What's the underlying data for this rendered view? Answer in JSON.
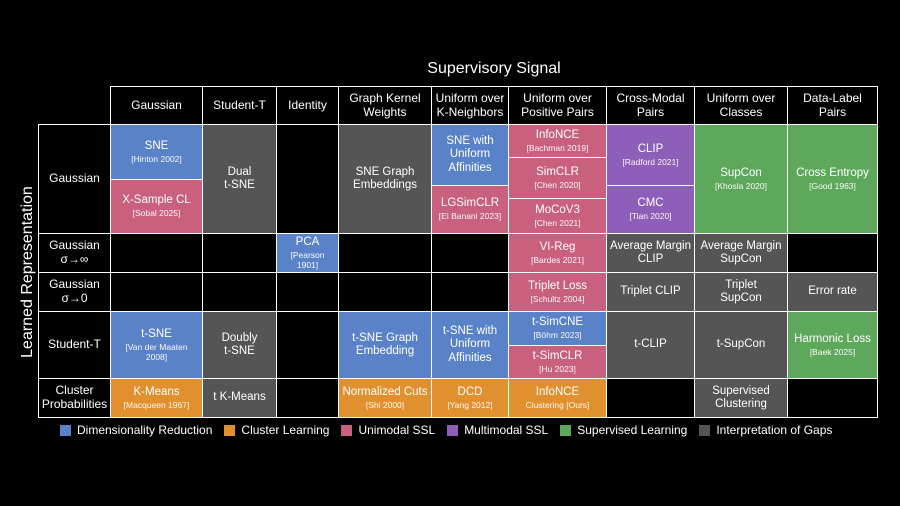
{
  "title": "Supervisory Signal",
  "y_label": "Learned Representation",
  "col_headers": [
    {
      "line1": "Gaussian",
      "line2": ""
    },
    {
      "line1": "Student-T",
      "line2": ""
    },
    {
      "line1": "Identity",
      "line2": ""
    },
    {
      "line1": "Graph Kernel",
      "line2": "Weights"
    },
    {
      "line1": "Uniform over",
      "line2": "K-Neighbors"
    },
    {
      "line1": "Uniform over",
      "line2": "Positive Pairs"
    },
    {
      "line1": "Cross-Modal",
      "line2": "Pairs"
    },
    {
      "line1": "Uniform over",
      "line2": "Classes"
    },
    {
      "line1": "Data-Label",
      "line2": "Pairs"
    }
  ],
  "row_headers": [
    {
      "line1": "Gaussian",
      "line2": ""
    },
    {
      "line1": "Gaussian",
      "line2": "σ→∞"
    },
    {
      "line1": "Gaussian",
      "line2": "σ→0"
    },
    {
      "line1": "Student-T",
      "line2": ""
    },
    {
      "line1": "Cluster",
      "line2": "Probabilities"
    }
  ],
  "colors": {
    "dimensionality_reduction": "#5a82c8",
    "cluster_learning": "#e0902e",
    "unimodal_ssl": "#c9617e",
    "multimodal_ssl": "#8e5fb8",
    "supervised_learning": "#5ea85c",
    "interpretation_of_gaps": "#555555"
  },
  "cells": {
    "r0c0a": {
      "main": "SNE",
      "cite": "[Hinton 2002]"
    },
    "r0c0b": {
      "main": "X-Sample CL",
      "cite": "[Sobal 2025]"
    },
    "r0c1": {
      "main1": "Dual",
      "main2": "t-SNE"
    },
    "r0c3": {
      "main1": "SNE Graph",
      "main2": "Embeddings"
    },
    "r0c4a": {
      "main1": "SNE with",
      "main2": "Uniform",
      "main3": "Affinities"
    },
    "r0c4b": {
      "main": "LGSimCLR",
      "cite": "[El Banani 2023]"
    },
    "r0c5a": {
      "main": "InfoNCE",
      "cite": "[Bachman 2019]"
    },
    "r0c5b": {
      "main": "SimCLR",
      "cite": "[Chen 2020]"
    },
    "r0c5c": {
      "main": "MoCoV3",
      "cite": "[Chen 2021]"
    },
    "r0c6a": {
      "main": "CLIP",
      "cite": "[Radford 2021]"
    },
    "r0c6b": {
      "main": "CMC",
      "cite": "[Tian 2020]"
    },
    "r0c7": {
      "main": "SupCon",
      "cite": "[Khosla 2020]"
    },
    "r0c8": {
      "main": "Cross Entropy",
      "cite": "[Good 1963]"
    },
    "r1c2": {
      "main": "PCA",
      "cite": "[Pearson 1901]"
    },
    "r1c5": {
      "main": "VI-Reg",
      "cite": "[Bardes 2021]"
    },
    "r1c6": {
      "main1": "Average Margin",
      "main2": "CLIP"
    },
    "r1c7": {
      "main1": "Average Margin",
      "main2": "SupCon"
    },
    "r2c5": {
      "main": "Triplet Loss",
      "cite": "[Schultz 2004]"
    },
    "r2c6": {
      "main1": "Triplet CLIP"
    },
    "r2c7": {
      "main1": "Triplet",
      "main2": "SupCon"
    },
    "r2c8": {
      "main1": "Error rate"
    },
    "r3c0": {
      "main": "t-SNE",
      "cite1": "[Van der Maaten",
      "cite2": "2008]"
    },
    "r3c1": {
      "main1": "Doubly",
      "main2": "t-SNE"
    },
    "r3c3": {
      "main1": "t-SNE Graph",
      "main2": "Embedding"
    },
    "r3c4": {
      "main1": "t-SNE with",
      "main2": "Uniform",
      "main3": "Affinities"
    },
    "r3c5a": {
      "main": "t-SimCNE",
      "cite": "[Böhm 2023]"
    },
    "r3c5b": {
      "main": "t-SimCLR",
      "cite": "[Hu 2023]"
    },
    "r3c6": {
      "main1": "t-CLIP"
    },
    "r3c7": {
      "main1": "t-SupCon"
    },
    "r3c8": {
      "main": "Harmonic Loss",
      "cite": "[Baek 2025]"
    },
    "r4c0": {
      "main": "K-Means",
      "cite": "[Macqueen 1967]"
    },
    "r4c1": {
      "main1": "t K-Means"
    },
    "r4c3": {
      "main": "Normalized Cuts",
      "cite": "[Shi 2000]"
    },
    "r4c4": {
      "main": "DCD",
      "cite": "[Yang 2012]"
    },
    "r4c5": {
      "main": "InfoNCE",
      "cite": "Clustering [Ours]"
    },
    "r4c7": {
      "main1": "Supervised",
      "main2": "Clustering"
    }
  },
  "legend": [
    {
      "label": "Dimensionality Reduction",
      "color": "#5a82c8"
    },
    {
      "label": "Cluster Learning",
      "color": "#e0902e"
    },
    {
      "label": "Unimodal SSL",
      "color": "#c9617e"
    },
    {
      "label": "Multimodal SSL",
      "color": "#8e5fb8"
    },
    {
      "label": "Supervised Learning",
      "color": "#5ea85c"
    },
    {
      "label": "Interpretation of Gaps",
      "color": "#555555"
    }
  ]
}
